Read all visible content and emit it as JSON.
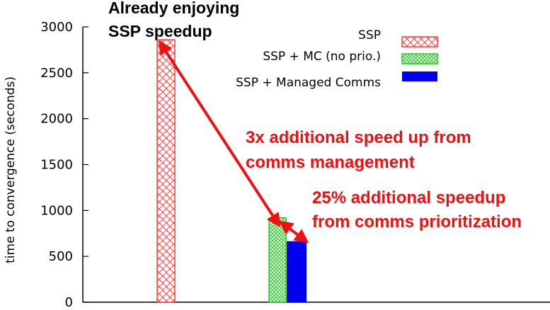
{
  "chart_data": {
    "type": "bar",
    "title_lines": [
      "Already enjoying",
      "SSP speedup"
    ],
    "ylabel": "time to convergence (seconds)",
    "xlabel": "",
    "ylim": [
      0,
      3000
    ],
    "yticks": [
      0,
      500,
      1000,
      1500,
      2000,
      2500,
      3000
    ],
    "grid": false,
    "legend_position": "top-right",
    "series": [
      {
        "name": "SSP",
        "style": "diag-cross",
        "color": "#ff3b3b",
        "values": [
          2860
        ]
      },
      {
        "name": "SSP + MC (no prio.)",
        "style": "fine-cross",
        "color": "#22cc22",
        "values": [
          920
        ]
      },
      {
        "name": "SSP + Managed Comms",
        "style": "solid",
        "color": "#0000ee",
        "values": [
          665
        ]
      }
    ],
    "annotations": [
      {
        "lines": [
          "3x additional speed up from",
          "comms management"
        ],
        "color": "#ee1111"
      },
      {
        "lines": [
          "25% additional speedup",
          "from comms prioritization"
        ],
        "color": "#ee1111"
      }
    ]
  }
}
